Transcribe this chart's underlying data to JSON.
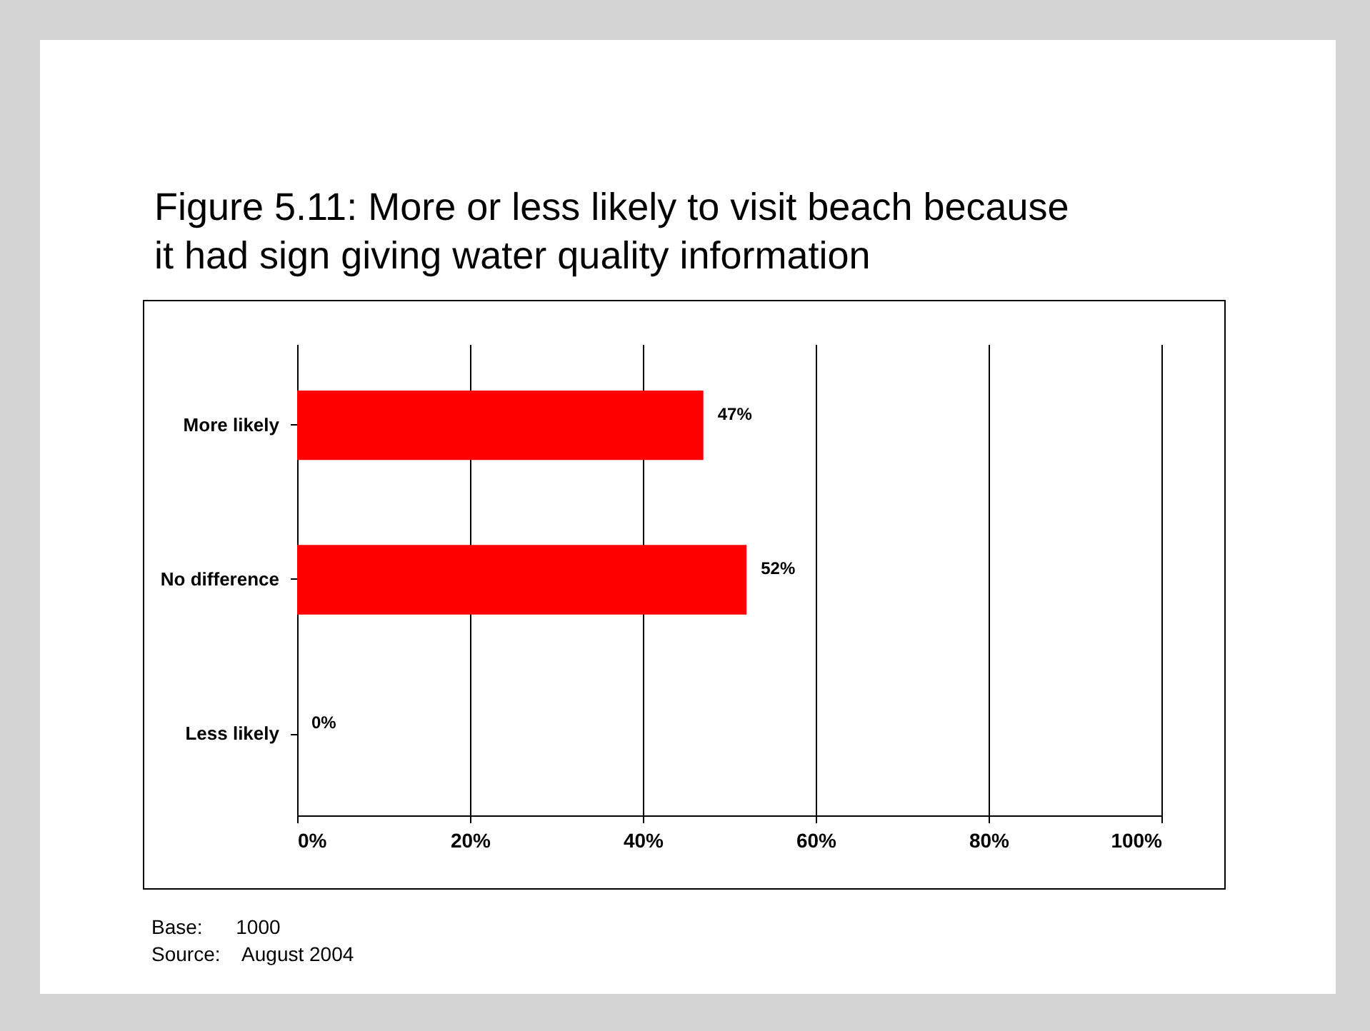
{
  "chart_data": {
    "type": "bar",
    "orientation": "horizontal",
    "title": "Figure 5.11:  More or less likely to visit beach because it had sign giving water quality information",
    "categories": [
      "More likely",
      "No difference",
      "Less likely"
    ],
    "values": [
      47,
      52,
      0
    ],
    "value_labels": [
      "47%",
      "52%",
      "0%"
    ],
    "color": "#ff0000",
    "xlim": [
      0,
      100
    ],
    "xticks": [
      {
        "value": 0,
        "label": "0%"
      },
      {
        "value": 20,
        "label": "20%"
      },
      {
        "value": 40,
        "label": "40%"
      },
      {
        "value": 60,
        "label": "60%"
      },
      {
        "value": 80,
        "label": "80%"
      },
      {
        "value": 100,
        "label": "100%"
      }
    ],
    "grid": "x",
    "annotations": [
      "Base:      1000",
      "Source:    August 2004"
    ]
  }
}
